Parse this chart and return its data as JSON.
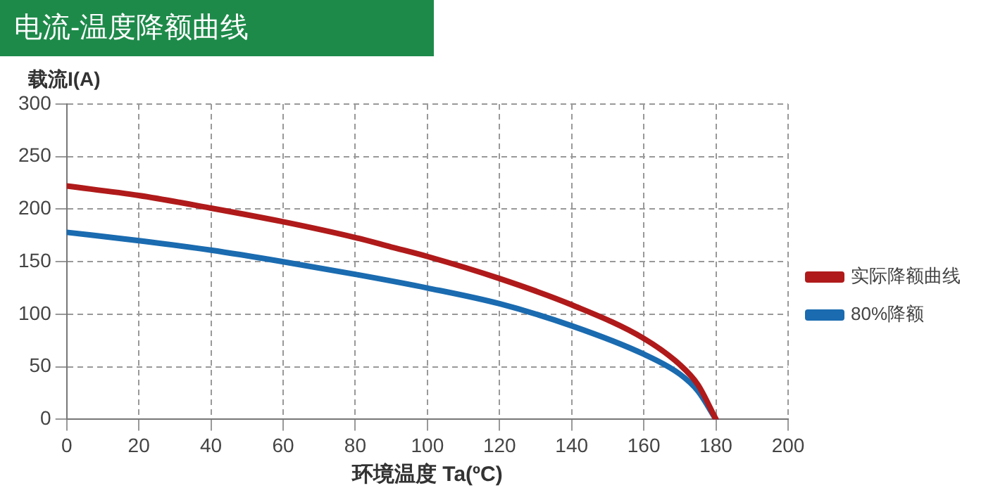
{
  "chart_data": {
    "type": "line",
    "title": "电流-温度降额曲线",
    "xlabel": "环境温度 Ta(ºC)",
    "ylabel": "载流I(A)",
    "xlim": [
      0,
      200
    ],
    "xticks": [
      0,
      20,
      40,
      60,
      80,
      100,
      120,
      140,
      160,
      180,
      200
    ],
    "ylim": [
      0,
      300
    ],
    "yticks": [
      0,
      50,
      100,
      150,
      200,
      250,
      300
    ],
    "grid": true,
    "legend": "right",
    "marker": "none",
    "line_style": "solid",
    "series": [
      {
        "name": "实际降额曲线",
        "color": "#b01a1a",
        "x": [
          0,
          20,
          40,
          60,
          80,
          90,
          100,
          120,
          140,
          160,
          170,
          175,
          180
        ],
        "values": [
          222,
          213,
          201,
          188,
          173,
          164,
          155,
          134,
          109,
          77,
          52,
          33,
          0
        ]
      },
      {
        "name": "80%降额",
        "color": "#1a6bb0",
        "x": [
          0,
          20,
          40,
          60,
          80,
          100,
          120,
          140,
          160,
          170,
          175,
          180
        ],
        "values": [
          178,
          170,
          161,
          150,
          138,
          125,
          110,
          89,
          62,
          43,
          27,
          0
        ]
      }
    ]
  }
}
